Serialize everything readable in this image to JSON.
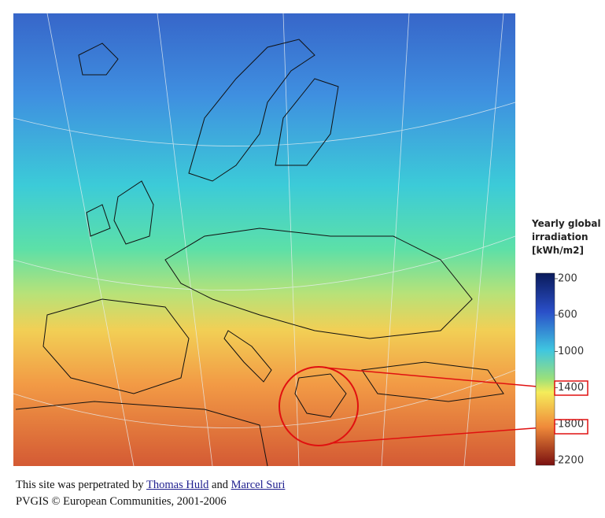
{
  "map": {
    "legend": {
      "title_lines": [
        "Yearly global",
        "irradiation",
        "[kWh/m2]"
      ],
      "range": [
        200,
        2200
      ],
      "ticks": [
        200,
        600,
        1000,
        1400,
        1800,
        2200
      ]
    },
    "footer": {
      "credit_prefix": "This site was perpetrated by",
      "author_1": "Thomas Huld",
      "credit_and": "and",
      "author_2": "Marcel Suri",
      "copyright": "PVGIS © European Communities, 2001-2006"
    }
  }
}
